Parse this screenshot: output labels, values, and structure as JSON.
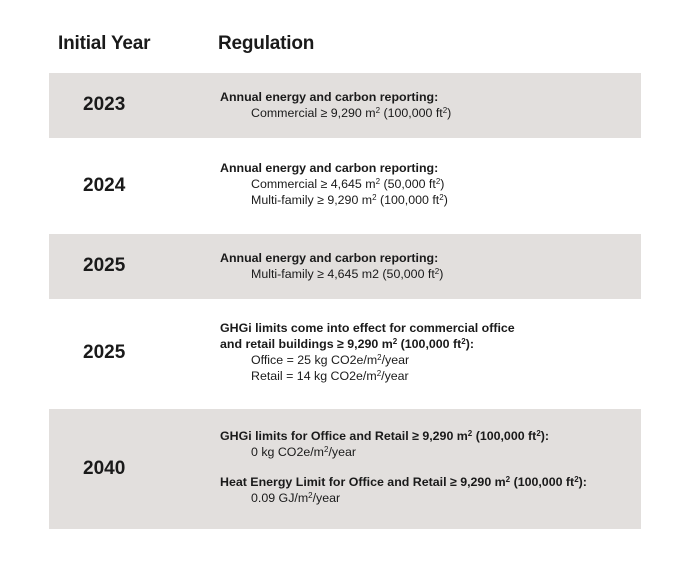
{
  "headers": {
    "year": "Initial Year",
    "regulation": "Regulation"
  },
  "rows": [
    {
      "year": "2023",
      "title": "Annual energy and carbon reporting:",
      "lines": [
        {
          "pre": "Commercial  ≥ 9,290 m",
          "sup": "2",
          "mid": " (100,000 ft",
          "sup2": "2",
          "post": ")"
        }
      ]
    },
    {
      "year": "2024",
      "title": "Annual energy and carbon reporting:",
      "lines": [
        {
          "pre": "Commercial  ≥ 4,645 m",
          "sup": "2",
          "mid": " (50,000 ft",
          "sup2": "2",
          "post": ")"
        },
        {
          "pre": "Multi-family  ≥ 9,290 m",
          "sup": "2",
          "mid": " (100,000 ft",
          "sup2": "2",
          "post": ")"
        }
      ]
    },
    {
      "year": "2025",
      "title": "Annual energy and carbon reporting:",
      "lines": [
        {
          "pre": "Multi-family  ≥ 4,645 m2 (50,000 ft",
          "sup": "2",
          "post": ")"
        }
      ]
    },
    {
      "year": "2025",
      "title1": "GHGi limits come into effect for commercial office",
      "title2": {
        "pre": "and retail buildings ≥ 9,290 m",
        "sup": "2",
        "mid": " (100,000 ft",
        "sup2": "2",
        "post": "):"
      },
      "lines": [
        {
          "pre": "Office = 25 kg CO2e/m",
          "sup": "2",
          "post": "/year"
        },
        {
          "pre": "Retail = 14 kg CO2e/m",
          "sup": "2",
          "post": "/year"
        }
      ]
    },
    {
      "year": "2040",
      "title1": {
        "pre": "GHGi limits for Office and Retail  ≥ 9,290 m",
        "sup": "2",
        "mid": " (100,000 ft",
        "sup2": "2",
        "post": "):"
      },
      "line1": {
        "pre": "0 kg CO2e/m",
        "sup": "2",
        "post": "/year"
      },
      "title2": {
        "pre": "Heat Energy Limit for Office and Retail  ≥ 9,290 m",
        "sup": "2",
        "mid": " (100,000 ft",
        "sup2": "2",
        "post": "):"
      },
      "line2": {
        "pre": "0.09 GJ/m",
        "sup": "2",
        "post": "/year"
      }
    }
  ]
}
